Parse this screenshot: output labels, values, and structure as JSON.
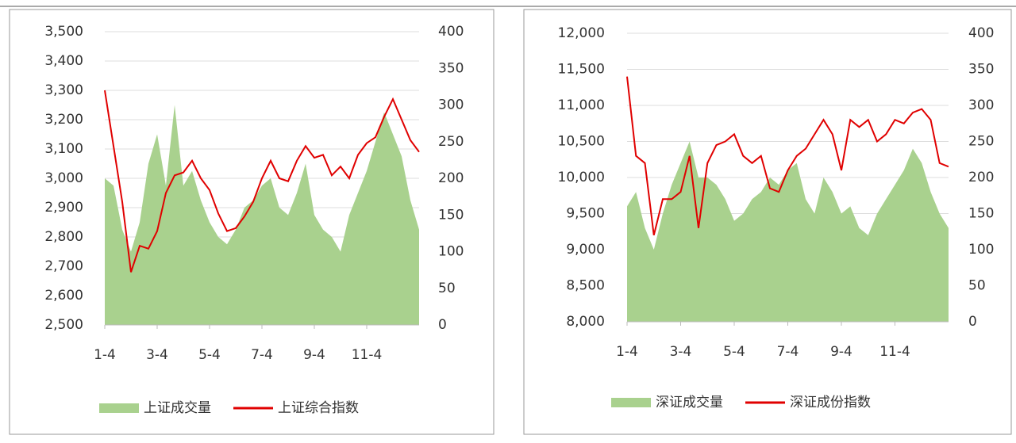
{
  "chart_data": [
    {
      "type": "combo",
      "categories": [
        "1-4",
        null,
        null,
        null,
        null,
        null,
        "3-4",
        null,
        null,
        null,
        null,
        null,
        "5-4",
        null,
        null,
        null,
        null,
        null,
        "7-4",
        null,
        null,
        null,
        null,
        null,
        "9-4",
        null,
        null,
        null,
        null,
        null,
        "11-4",
        null,
        null,
        null,
        null,
        null,
        null
      ],
      "series": [
        {
          "name": "上证成交量",
          "type": "area",
          "axis": "y2",
          "color": "#a9d18e",
          "values": [
            200,
            190,
            130,
            100,
            140,
            220,
            260,
            190,
            300,
            190,
            210,
            170,
            140,
            120,
            110,
            130,
            160,
            170,
            190,
            200,
            160,
            150,
            180,
            220,
            150,
            130,
            120,
            100,
            150,
            180,
            210,
            250,
            290,
            260,
            230,
            170,
            130
          ]
        },
        {
          "name": "上证综合指数",
          "type": "line",
          "color": "#e00000",
          "values": [
            3300,
            3110,
            2920,
            2680,
            2770,
            2760,
            2820,
            2950,
            3010,
            3020,
            3060,
            3000,
            2960,
            2880,
            2820,
            2830,
            2870,
            2920,
            3000,
            3060,
            3000,
            2990,
            3060,
            3110,
            3070,
            3080,
            3010,
            3040,
            3000,
            3080,
            3120,
            3140,
            3210,
            3270,
            3200,
            3130,
            3090
          ]
        }
      ],
      "ylim": [
        2500,
        3500
      ],
      "yticks": [
        {
          "value": 2500,
          "label": "2,500"
        },
        {
          "value": 2600,
          "label": "2,600"
        },
        {
          "value": 2700,
          "label": "2,700"
        },
        {
          "value": 2800,
          "label": "2,800"
        },
        {
          "value": 2900,
          "label": "2,900"
        },
        {
          "value": 3000,
          "label": "3,000"
        },
        {
          "value": 3100,
          "label": "3,100"
        },
        {
          "value": 3200,
          "label": "3,200"
        },
        {
          "value": 3300,
          "label": "3,300"
        },
        {
          "value": 3400,
          "label": "3,400"
        },
        {
          "value": 3500,
          "label": "3,500"
        }
      ],
      "y2lim": [
        0,
        400
      ],
      "y2ticks": [
        0,
        50,
        100,
        150,
        200,
        250,
        300,
        350,
        400
      ],
      "grid": true,
      "legend": "bottom"
    },
    {
      "type": "combo",
      "categories": [
        "1-4",
        null,
        null,
        null,
        null,
        null,
        "3-4",
        null,
        null,
        null,
        null,
        null,
        "5-4",
        null,
        null,
        null,
        null,
        null,
        "7-4",
        null,
        null,
        null,
        null,
        null,
        "9-4",
        null,
        null,
        null,
        null,
        null,
        "11-4",
        null,
        null,
        null,
        null,
        null,
        null
      ],
      "series": [
        {
          "name": "深证成交量",
          "type": "area",
          "axis": "y2",
          "color": "#a9d18e",
          "values": [
            160,
            180,
            130,
            100,
            150,
            190,
            220,
            250,
            200,
            200,
            190,
            170,
            140,
            150,
            170,
            180,
            200,
            190,
            210,
            220,
            170,
            150,
            200,
            180,
            150,
            160,
            130,
            120,
            150,
            170,
            190,
            210,
            240,
            220,
            180,
            150,
            130
          ]
        },
        {
          "name": "深证成份指数",
          "type": "line",
          "color": "#e00000",
          "values": [
            11400,
            10300,
            10200,
            9200,
            9700,
            9700,
            9800,
            10300,
            9300,
            10200,
            10450,
            10500,
            10600,
            10300,
            10200,
            10300,
            9850,
            9800,
            10100,
            10300,
            10400,
            10600,
            10800,
            10600,
            10100,
            10800,
            10700,
            10800,
            10500,
            10600,
            10800,
            10750,
            10900,
            10950,
            10800,
            10200,
            10150
          ]
        }
      ],
      "ylim": [
        8000,
        12000
      ],
      "yticks": [
        {
          "value": 8000,
          "label": "8,000"
        },
        {
          "value": 8500,
          "label": "8,500"
        },
        {
          "value": 9000,
          "label": "9,000"
        },
        {
          "value": 9500,
          "label": "9,500"
        },
        {
          "value": 10000,
          "label": "10,000"
        },
        {
          "value": 10500,
          "label": "10,500"
        },
        {
          "value": 11000,
          "label": "11,000"
        },
        {
          "value": 11500,
          "label": "11,500"
        },
        {
          "value": 12000,
          "label": "12,000"
        }
      ],
      "y2lim": [
        0,
        400
      ],
      "y2ticks": [
        0,
        50,
        100,
        150,
        200,
        250,
        300,
        350,
        400
      ],
      "grid": true,
      "legend": "bottom"
    }
  ]
}
